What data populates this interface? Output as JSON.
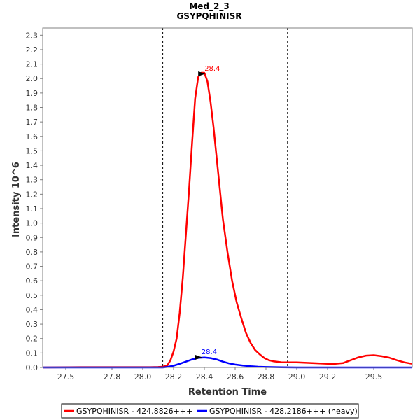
{
  "chart_data": {
    "type": "line",
    "title": "Med_2_3",
    "subtitle": "GSYPQHINISR",
    "xlabel": "Retention Time",
    "ylabel": "Intensity 10^6",
    "xlim": [
      27.35,
      29.75
    ],
    "ylim": [
      0,
      2.35
    ],
    "x_ticks": [
      27.5,
      27.8,
      28.0,
      28.2,
      28.4,
      28.6,
      28.8,
      29.0,
      29.2,
      29.5
    ],
    "x_tick_labels": [
      "27.5",
      "27.8",
      "28.0",
      "28.2",
      "28.4",
      "28.6",
      "28.8",
      "29.0",
      "29.2",
      "29.5"
    ],
    "y_ticks": [
      0.0,
      0.1,
      0.2,
      0.3,
      0.4,
      0.5,
      0.6,
      0.7,
      0.8,
      0.9,
      1.0,
      1.1,
      1.2,
      1.3,
      1.4,
      1.5,
      1.6,
      1.7,
      1.8,
      1.9,
      2.0,
      2.1,
      2.2,
      2.3
    ],
    "y_tick_labels": [
      "0.0",
      "0.1",
      "0.2",
      "0.3",
      "0.4",
      "0.5",
      "0.6",
      "0.7",
      "0.8",
      "0.9",
      "1.0",
      "1.1",
      "1.2",
      "1.3",
      "1.4",
      "1.5",
      "1.6",
      "1.7",
      "1.8",
      "1.9",
      "2.0",
      "2.1",
      "2.2",
      "2.3"
    ],
    "integration_bounds": [
      28.13,
      28.94
    ],
    "series": [
      {
        "name": "GSYPQHINISR - 424.8826+++",
        "color": "#ff0000",
        "peak_label": "28.4",
        "peak": {
          "x": 28.41,
          "y": 2.03
        },
        "x": [
          27.35,
          27.6,
          27.9,
          28.05,
          28.1,
          28.13,
          28.16,
          28.18,
          28.2,
          28.22,
          28.24,
          28.26,
          28.28,
          28.3,
          28.32,
          28.34,
          28.36,
          28.38,
          28.4,
          28.42,
          28.44,
          28.46,
          28.48,
          28.5,
          28.52,
          28.55,
          28.58,
          28.61,
          28.64,
          28.67,
          28.7,
          28.73,
          28.76,
          28.79,
          28.82,
          28.85,
          28.9,
          28.95,
          29.0,
          29.05,
          29.1,
          29.15,
          29.2,
          29.25,
          29.3,
          29.35,
          29.4,
          29.45,
          29.5,
          29.55,
          29.6,
          29.65,
          29.7,
          29.75
        ],
        "y": [
          0.0,
          0.002,
          0.002,
          0.002,
          0.003,
          0.005,
          0.015,
          0.05,
          0.11,
          0.2,
          0.38,
          0.62,
          0.92,
          1.22,
          1.55,
          1.86,
          2.01,
          2.04,
          2.04,
          1.98,
          1.84,
          1.66,
          1.45,
          1.24,
          1.03,
          0.8,
          0.6,
          0.45,
          0.34,
          0.24,
          0.17,
          0.12,
          0.09,
          0.065,
          0.05,
          0.042,
          0.036,
          0.035,
          0.035,
          0.033,
          0.03,
          0.028,
          0.025,
          0.025,
          0.03,
          0.05,
          0.07,
          0.082,
          0.085,
          0.078,
          0.068,
          0.05,
          0.035,
          0.025
        ]
      },
      {
        "name": "GSYPQHINISR - 428.2186+++ (heavy)",
        "color": "#0000ff",
        "peak_label": "28.4",
        "peak": {
          "x": 28.39,
          "y": 0.068
        },
        "x": [
          27.35,
          28.0,
          28.13,
          28.16,
          28.2,
          28.24,
          28.28,
          28.32,
          28.36,
          28.4,
          28.44,
          28.48,
          28.52,
          28.56,
          28.6,
          28.65,
          28.7,
          28.75,
          28.8,
          28.9,
          29.0,
          29.2,
          29.5,
          29.75
        ],
        "y": [
          0.0,
          0.0,
          0.0,
          0.004,
          0.012,
          0.025,
          0.04,
          0.055,
          0.066,
          0.069,
          0.065,
          0.055,
          0.04,
          0.028,
          0.02,
          0.013,
          0.008,
          0.005,
          0.003,
          0.001,
          0.0,
          0.0,
          0.0,
          0.0
        ]
      }
    ],
    "legend_position": "bottom"
  }
}
